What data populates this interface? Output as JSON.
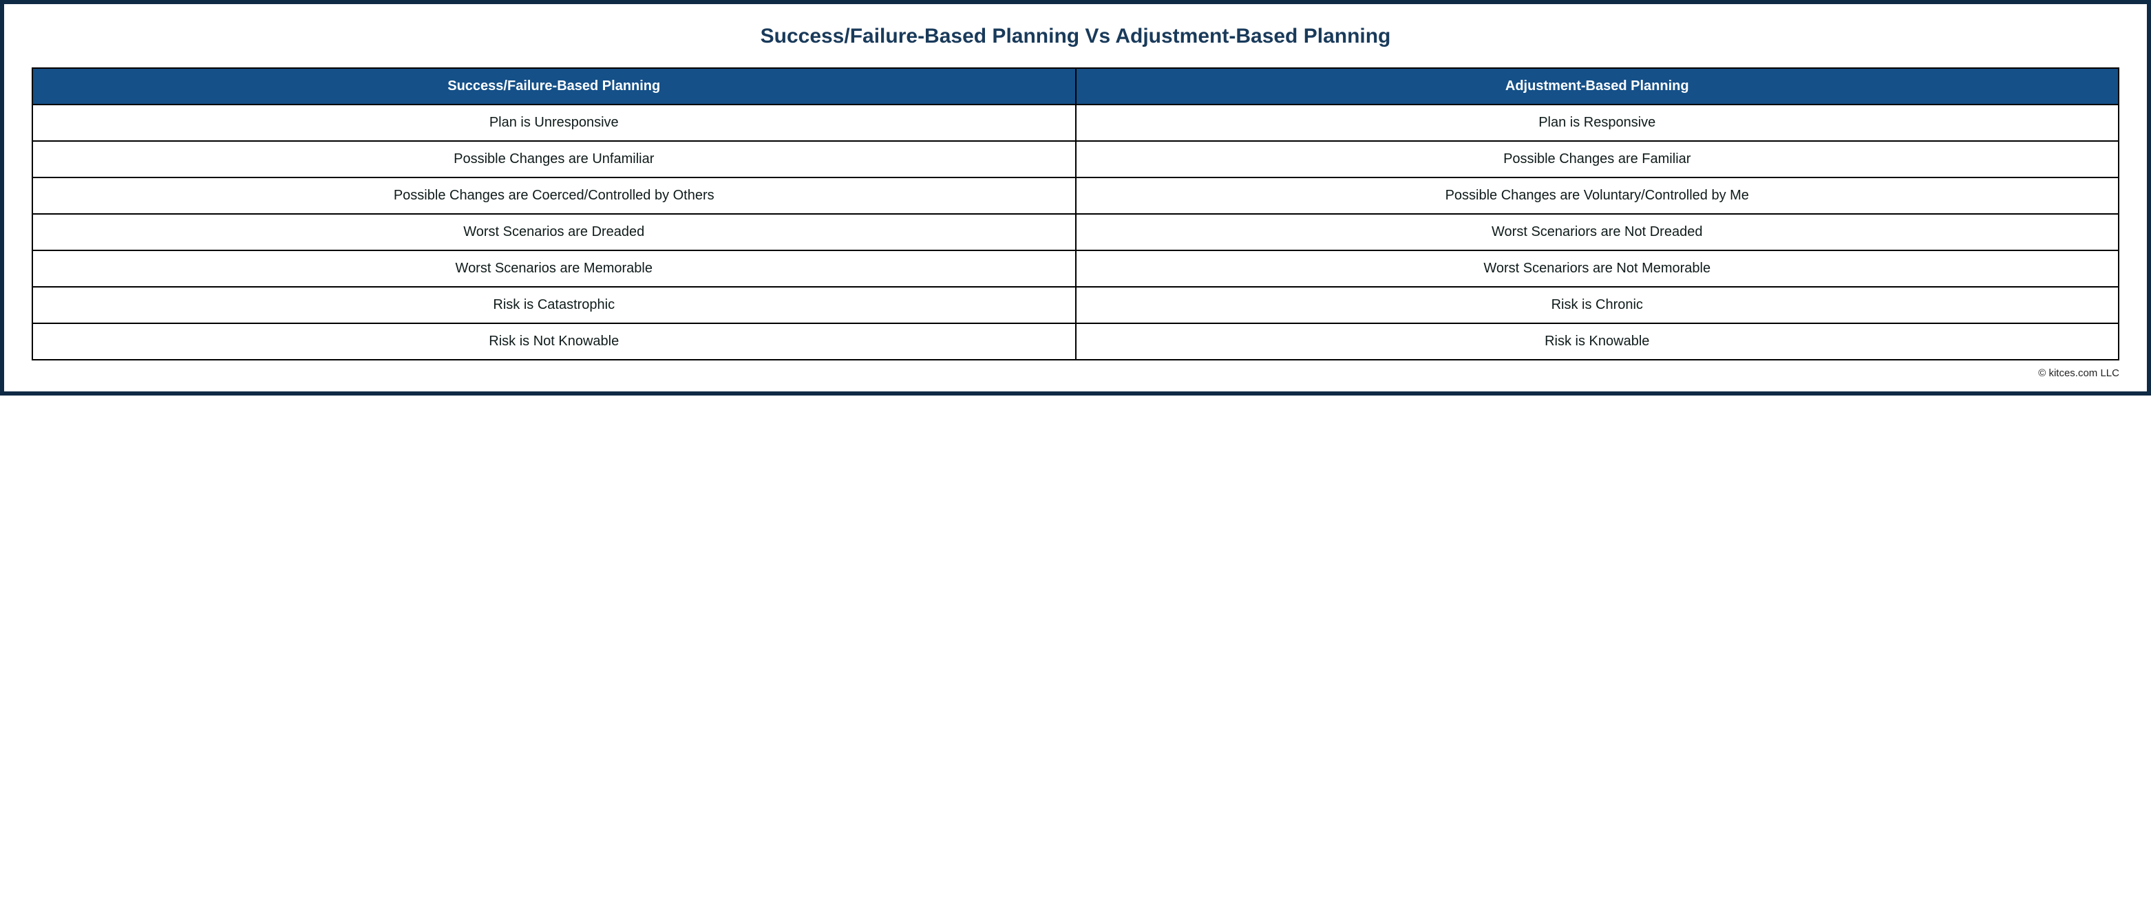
{
  "title": "Success/Failure-Based Planning Vs Adjustment-Based Planning",
  "table": {
    "type": "table",
    "columns": [
      "Success/Failure-Based Planning",
      "Adjustment-Based Planning"
    ],
    "rows": [
      [
        "Plan is Unresponsive",
        "Plan is Responsive"
      ],
      [
        "Possible Changes are Unfamiliar",
        "Possible Changes are Familiar"
      ],
      [
        "Possible Changes are Coerced/Controlled by Others",
        "Possible Changes are Voluntary/Controlled by Me"
      ],
      [
        "Worst Scenarios are Dreaded",
        "Worst Scenariors are Not Dreaded"
      ],
      [
        "Worst Scenarios are Memorable",
        "Worst Scenariors are Not Memorable"
      ],
      [
        "Risk is Catastrophic",
        "Risk is Chronic"
      ],
      [
        "Risk is Not Knowable",
        "Risk is Knowable"
      ]
    ],
    "header_bg": "#155088",
    "header_text_color": "#ffffff",
    "cell_bg": "#ffffff",
    "border_color": "#000000",
    "border_width": 2,
    "header_fontsize": 20,
    "cell_fontsize": 20,
    "header_fontweight": 700
  },
  "outer_border_color": "#0f2a44",
  "outer_border_width": 6,
  "title_color": "#193a5a",
  "title_fontsize": 30,
  "credit": "© kitces.com LLC"
}
